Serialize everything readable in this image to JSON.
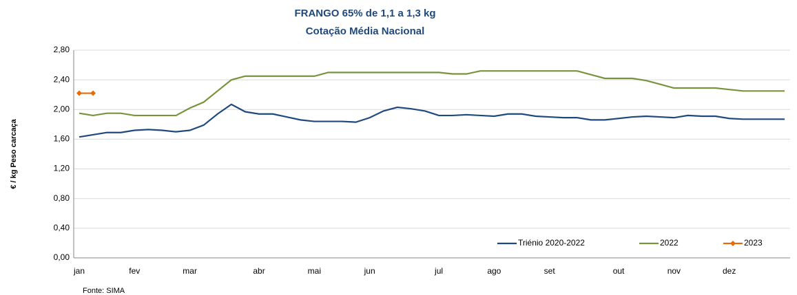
{
  "chart_data": {
    "type": "line",
    "title": "FRANGO 65% de 1,1 a 1,3 kg",
    "subtitle": "Cotação Média Nacional",
    "y_label": "€ / kg Peso carcaça",
    "source": "Fonte: SIMA",
    "categories": [
      "jan",
      null,
      null,
      null,
      "fev",
      null,
      null,
      null,
      "mar",
      null,
      null,
      null,
      null,
      "abr",
      null,
      null,
      null,
      "mai",
      null,
      null,
      null,
      "jun",
      null,
      null,
      null,
      null,
      "jul",
      null,
      null,
      null,
      "ago",
      null,
      null,
      null,
      "set",
      null,
      null,
      null,
      null,
      "out",
      null,
      null,
      null,
      "nov",
      null,
      null,
      null,
      "dez",
      null,
      null,
      null,
      null
    ],
    "series": [
      {
        "name": "Triénio 2020-2022",
        "color": "#1f497d",
        "marker": false,
        "values": [
          1.63,
          1.66,
          1.69,
          1.69,
          1.72,
          1.73,
          1.72,
          1.7,
          1.72,
          1.79,
          1.94,
          2.07,
          1.97,
          1.94,
          1.94,
          1.9,
          1.86,
          1.84,
          1.84,
          1.84,
          1.83,
          1.89,
          1.98,
          2.03,
          2.01,
          1.98,
          1.92,
          1.92,
          1.93,
          1.92,
          1.91,
          1.94,
          1.94,
          1.91,
          1.9,
          1.89,
          1.89,
          1.86,
          1.86,
          1.88,
          1.9,
          1.91,
          1.9,
          1.89,
          1.92,
          1.91,
          1.91,
          1.88,
          1.87,
          1.87,
          1.87,
          1.87
        ]
      },
      {
        "name": "2022",
        "color": "#77933c",
        "marker": false,
        "values": [
          1.95,
          1.92,
          1.95,
          1.95,
          1.92,
          1.92,
          1.92,
          1.92,
          2.02,
          2.1,
          2.25,
          2.4,
          2.45,
          2.45,
          2.45,
          2.45,
          2.45,
          2.45,
          2.5,
          2.5,
          2.5,
          2.5,
          2.5,
          2.5,
          2.5,
          2.5,
          2.5,
          2.48,
          2.48,
          2.52,
          2.52,
          2.52,
          2.52,
          2.52,
          2.52,
          2.52,
          2.52,
          2.47,
          2.42,
          2.42,
          2.42,
          2.39,
          2.34,
          2.29,
          2.29,
          2.29,
          2.29,
          2.27,
          2.25,
          2.25,
          2.25,
          2.25
        ]
      },
      {
        "name": "2023",
        "color": "#e46c0a",
        "marker": true,
        "values": [
          2.22,
          2.22,
          null,
          null,
          null,
          null,
          null,
          null,
          null,
          null,
          null,
          null,
          null,
          null,
          null,
          null,
          null,
          null,
          null,
          null,
          null,
          null,
          null,
          null,
          null,
          null,
          null,
          null,
          null,
          null,
          null,
          null,
          null,
          null,
          null,
          null,
          null,
          null,
          null,
          null,
          null,
          null,
          null,
          null,
          null,
          null,
          null,
          null,
          null,
          null,
          null,
          null
        ]
      }
    ],
    "ylim": [
      0,
      2.8
    ],
    "yticks": [
      {
        "value": 0,
        "label": "0,00"
      },
      {
        "value": 0.4,
        "label": "0,40"
      },
      {
        "value": 0.8,
        "label": "0,80"
      },
      {
        "value": 1.2,
        "label": "1,20"
      },
      {
        "value": 1.6,
        "label": "1,60"
      },
      {
        "value": 2.0,
        "label": "2,00"
      },
      {
        "value": 2.4,
        "label": "2,40"
      },
      {
        "value": 2.8,
        "label": "2,80"
      }
    ],
    "grid": true,
    "legend": "bottom-right"
  }
}
